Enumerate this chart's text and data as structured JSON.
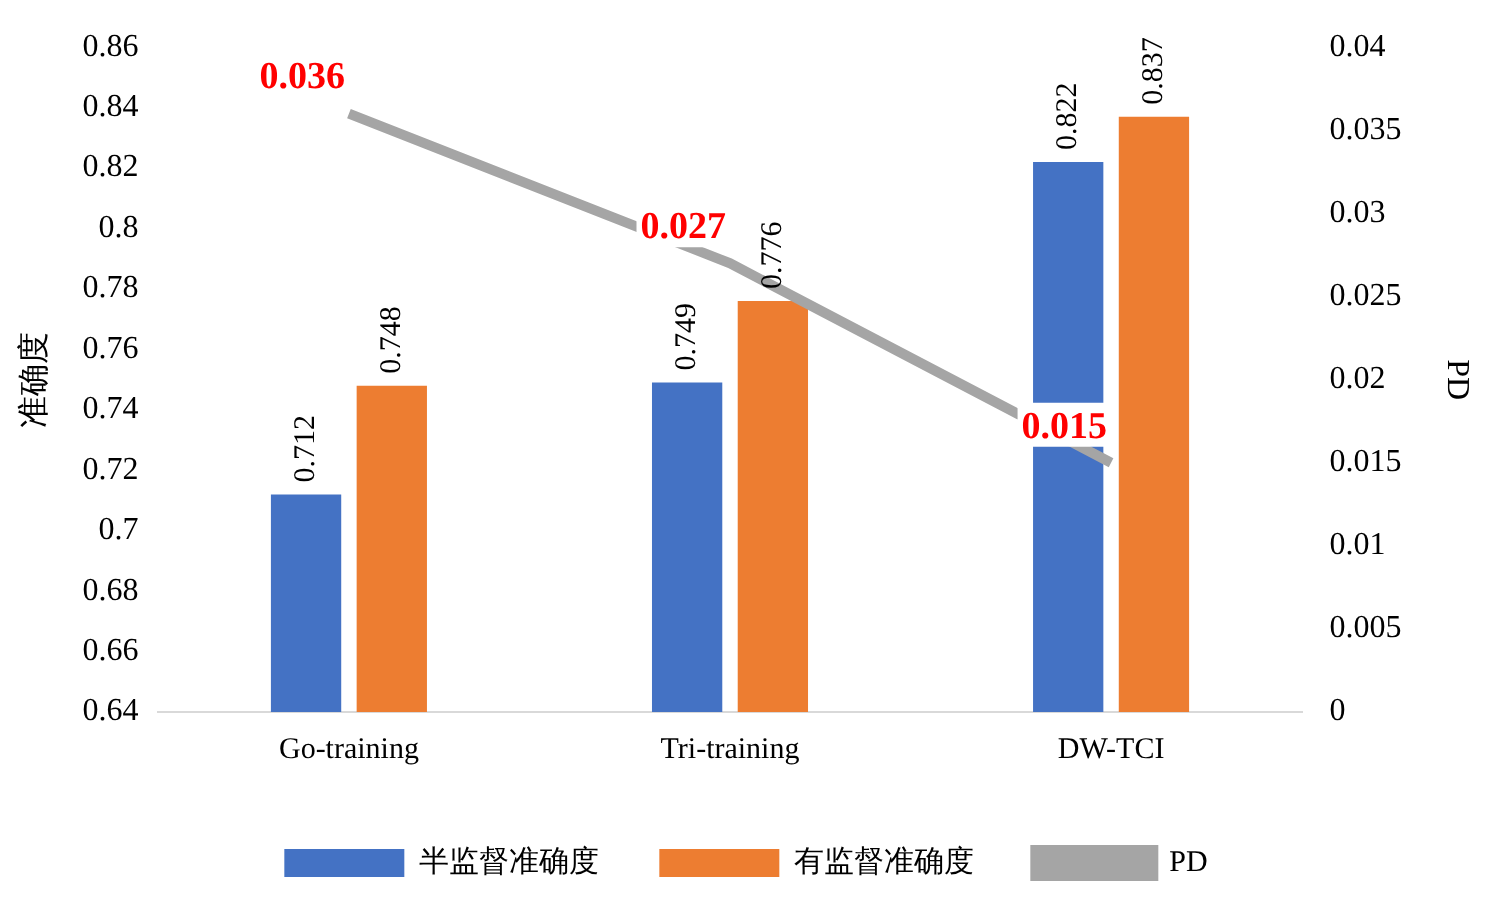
{
  "chart_data": {
    "type": "bar",
    "ylabel": "准确度",
    "y2label": "PD",
    "categories": [
      "Go-training",
      "Tri-training",
      "DW-TCI"
    ],
    "series": [
      {
        "name": "半监督准确度",
        "color": "#4472c4",
        "values": [
          0.712,
          0.749,
          0.822
        ]
      },
      {
        "name": "有监督准确度",
        "color": "#ed7d31",
        "values": [
          0.748,
          0.776,
          0.837
        ]
      },
      {
        "name": "PD",
        "type": "line",
        "axis": "y2",
        "color": "#a5a5a5",
        "values": [
          0.036,
          0.027,
          0.015
        ]
      }
    ],
    "ylim": [
      0.64,
      0.86
    ],
    "yticks": [
      0.64,
      0.66,
      0.68,
      0.7,
      0.72,
      0.74,
      0.76,
      0.78,
      0.8,
      0.82,
      0.84,
      0.86
    ],
    "y2lim": [
      0,
      0.04
    ],
    "y2ticks": [
      0,
      0.005,
      0.01,
      0.015,
      0.02,
      0.025,
      0.03,
      0.035,
      0.04
    ],
    "data_labels": true,
    "grid": false,
    "legend": "bottom",
    "marker": "none"
  }
}
